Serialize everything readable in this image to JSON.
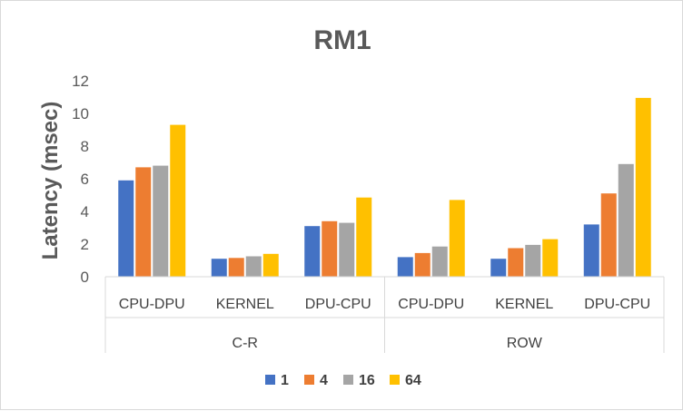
{
  "chart_data": {
    "type": "bar",
    "title": "RM1",
    "ylabel": "Latency (msec)",
    "xlabel": "",
    "ylim": [
      0,
      12
    ],
    "yticks": [
      0,
      2,
      4,
      6,
      8,
      10,
      12
    ],
    "grid": false,
    "legend_position": "bottom",
    "groups": [
      {
        "name": "C-R",
        "categories": [
          "CPU-DPU",
          "KERNEL",
          "DPU-CPU"
        ]
      },
      {
        "name": "ROW",
        "categories": [
          "CPU-DPU",
          "KERNEL",
          "DPU-CPU"
        ]
      }
    ],
    "categories": [
      "CPU-DPU",
      "KERNEL",
      "DPU-CPU",
      "CPU-DPU",
      "KERNEL",
      "DPU-CPU"
    ],
    "series": [
      {
        "name": "1",
        "color": "#4472c4",
        "values": [
          5.9,
          1.1,
          3.1,
          1.2,
          1.1,
          3.2
        ]
      },
      {
        "name": "4",
        "color": "#ed7d31",
        "values": [
          6.7,
          1.15,
          3.4,
          1.45,
          1.75,
          5.1
        ]
      },
      {
        "name": "16",
        "color": "#a5a5a5",
        "values": [
          6.8,
          1.25,
          3.3,
          1.85,
          1.95,
          6.9
        ]
      },
      {
        "name": "64",
        "color": "#ffc000",
        "values": [
          9.3,
          1.4,
          4.85,
          4.7,
          2.3,
          10.95
        ]
      }
    ]
  }
}
